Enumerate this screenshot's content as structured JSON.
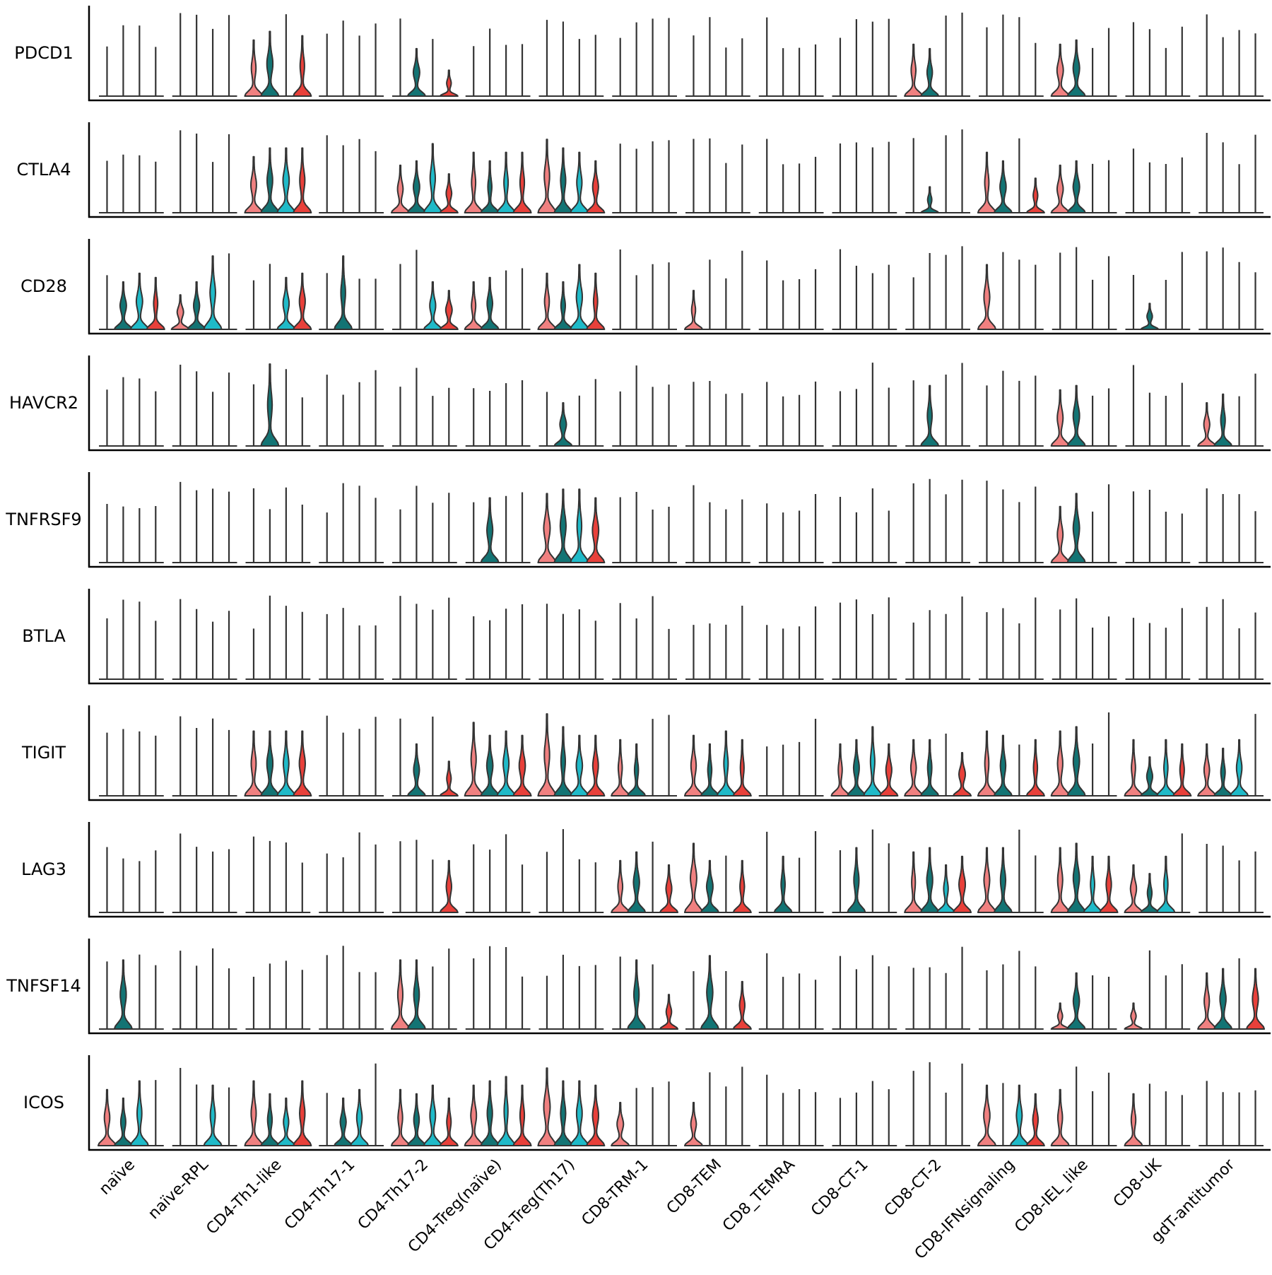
{
  "chart_data": {
    "type": "violin",
    "genes": [
      "PDCD1",
      "CTLA4",
      "CD28",
      "HAVCR2",
      "TNFRSF9",
      "BTLA",
      "TIGIT",
      "LAG3",
      "TNFSF14",
      "ICOS"
    ],
    "clusters": [
      "naïve",
      "naïve-RPL",
      "CD4-Th1-like",
      "CD4-Th17-1",
      "CD4-Th17-2",
      "CD4-Treg(naïve)",
      "CD4-Treg(Th17)",
      "CD8-TRM-1",
      "CD8-TEM",
      "CD8_TEMRA",
      "CD8-CT-1",
      "CD8-CT-2",
      "CD8-IFNsignaling",
      "CD8-IEL_like",
      "CD8-UK",
      "gdT-antitumor"
    ],
    "group_colors": [
      "#f08080",
      "#137474",
      "#1fbac8",
      "#e8403a"
    ],
    "axis_color": "#000000",
    "outline_color": "#333333",
    "ylim": [
      0,
      1
    ],
    "violins": {
      "PDCD1": [
        [
          0,
          0,
          0,
          0
        ],
        [
          0,
          0,
          0,
          0
        ],
        [
          0.65,
          0.75,
          0,
          0.7
        ],
        [
          0,
          0,
          0,
          0
        ],
        [
          0,
          0.55,
          0,
          0.3
        ],
        [
          0,
          0,
          0,
          0
        ],
        [
          0,
          0,
          0,
          0
        ],
        [
          0,
          0,
          0,
          0
        ],
        [
          0,
          0,
          0,
          0
        ],
        [
          0,
          0,
          0,
          0
        ],
        [
          0,
          0,
          0,
          0
        ],
        [
          0.6,
          0.55,
          0,
          0
        ],
        [
          0,
          0,
          0,
          0
        ],
        [
          0.6,
          0.65,
          0,
          0
        ],
        [
          0,
          0,
          0,
          0
        ],
        [
          0,
          0,
          0,
          0
        ]
      ],
      "CTLA4": [
        [
          0,
          0,
          0,
          0
        ],
        [
          0,
          0,
          0,
          0
        ],
        [
          0.65,
          0.75,
          0.75,
          0.75
        ],
        [
          0,
          0,
          0,
          0
        ],
        [
          0.55,
          0.6,
          0.8,
          0.45
        ],
        [
          0.7,
          0.6,
          0.7,
          0.7
        ],
        [
          0.85,
          0.75,
          0.7,
          0.6
        ],
        [
          0,
          0,
          0,
          0
        ],
        [
          0,
          0,
          0,
          0
        ],
        [
          0,
          0,
          0,
          0
        ],
        [
          0,
          0,
          0,
          0
        ],
        [
          0,
          0.3,
          0,
          0
        ],
        [
          0.7,
          0.6,
          0,
          0.4
        ],
        [
          0.55,
          0.6,
          0,
          0
        ],
        [
          0,
          0,
          0,
          0
        ],
        [
          0,
          0,
          0,
          0
        ]
      ],
      "CD28": [
        [
          0,
          0.55,
          0.65,
          0.6
        ],
        [
          0.4,
          0.55,
          0.85,
          0
        ],
        [
          0,
          0,
          0.6,
          0.65
        ],
        [
          0,
          0.85,
          0,
          0
        ],
        [
          0,
          0,
          0.55,
          0.45
        ],
        [
          0.55,
          0.6,
          0,
          0
        ],
        [
          0.65,
          0.55,
          0.75,
          0.65
        ],
        [
          0,
          0,
          0,
          0
        ],
        [
          0.45,
          0,
          0,
          0
        ],
        [
          0,
          0,
          0,
          0
        ],
        [
          0,
          0,
          0,
          0
        ],
        [
          0,
          0,
          0,
          0
        ],
        [
          0.75,
          0,
          0,
          0
        ],
        [
          0,
          0,
          0,
          0
        ],
        [
          0,
          0.3,
          0,
          0
        ],
        [
          0,
          0,
          0,
          0
        ]
      ],
      "HAVCR2": [
        [
          0,
          0,
          0,
          0
        ],
        [
          0,
          0,
          0,
          0
        ],
        [
          0,
          0.95,
          0,
          0
        ],
        [
          0,
          0,
          0,
          0
        ],
        [
          0,
          0,
          0,
          0
        ],
        [
          0,
          0,
          0,
          0
        ],
        [
          0,
          0.5,
          0,
          0
        ],
        [
          0,
          0,
          0,
          0
        ],
        [
          0,
          0,
          0,
          0
        ],
        [
          0,
          0,
          0,
          0
        ],
        [
          0,
          0,
          0,
          0
        ],
        [
          0,
          0.7,
          0,
          0
        ],
        [
          0,
          0,
          0,
          0
        ],
        [
          0.65,
          0.7,
          0,
          0
        ],
        [
          0,
          0,
          0,
          0
        ],
        [
          0.5,
          0.6,
          0,
          0
        ]
      ],
      "TNFRSF9": [
        [
          0,
          0,
          0,
          0
        ],
        [
          0,
          0,
          0,
          0
        ],
        [
          0,
          0,
          0,
          0
        ],
        [
          0,
          0,
          0,
          0
        ],
        [
          0,
          0,
          0,
          0
        ],
        [
          0,
          0.75,
          0,
          0
        ],
        [
          0.8,
          0.85,
          0.85,
          0.75
        ],
        [
          0,
          0,
          0,
          0
        ],
        [
          0,
          0,
          0,
          0
        ],
        [
          0,
          0,
          0,
          0
        ],
        [
          0,
          0,
          0,
          0
        ],
        [
          0,
          0,
          0,
          0
        ],
        [
          0,
          0,
          0,
          0
        ],
        [
          0.65,
          0.8,
          0,
          0
        ],
        [
          0,
          0,
          0,
          0
        ],
        [
          0,
          0,
          0,
          0
        ]
      ],
      "BTLA": [
        [
          0,
          0,
          0,
          0
        ],
        [
          0,
          0,
          0,
          0
        ],
        [
          0,
          0,
          0,
          0
        ],
        [
          0,
          0,
          0,
          0
        ],
        [
          0,
          0,
          0,
          0
        ],
        [
          0,
          0,
          0,
          0
        ],
        [
          0,
          0,
          0,
          0
        ],
        [
          0,
          0,
          0,
          0
        ],
        [
          0,
          0,
          0,
          0
        ],
        [
          0,
          0,
          0,
          0
        ],
        [
          0,
          0,
          0,
          0
        ],
        [
          0,
          0,
          0,
          0
        ],
        [
          0,
          0,
          0,
          0
        ],
        [
          0,
          0,
          0,
          0
        ],
        [
          0,
          0,
          0,
          0
        ],
        [
          0,
          0,
          0,
          0
        ]
      ],
      "TIGIT": [
        [
          0,
          0,
          0,
          0
        ],
        [
          0,
          0,
          0,
          0
        ],
        [
          0.75,
          0.75,
          0.75,
          0.75
        ],
        [
          0,
          0,
          0,
          0
        ],
        [
          0,
          0.6,
          0,
          0.4
        ],
        [
          0.85,
          0.7,
          0.75,
          0.7
        ],
        [
          0.95,
          0.8,
          0.7,
          0.7
        ],
        [
          0.65,
          0.6,
          0,
          0
        ],
        [
          0.7,
          0.6,
          0.75,
          0.65
        ],
        [
          0,
          0,
          0,
          0
        ],
        [
          0.6,
          0.65,
          0.8,
          0.6
        ],
        [
          0.65,
          0.65,
          0,
          0.5
        ],
        [
          0.75,
          0.7,
          0,
          0.65
        ],
        [
          0.75,
          0.8,
          0,
          0
        ],
        [
          0.65,
          0.45,
          0.65,
          0.6
        ],
        [
          0.6,
          0.55,
          0.65,
          0
        ]
      ],
      "LAG3": [
        [
          0,
          0,
          0,
          0
        ],
        [
          0,
          0,
          0,
          0
        ],
        [
          0,
          0,
          0,
          0
        ],
        [
          0,
          0,
          0,
          0
        ],
        [
          0,
          0,
          0,
          0.6
        ],
        [
          0,
          0,
          0,
          0
        ],
        [
          0,
          0,
          0,
          0
        ],
        [
          0.6,
          0.7,
          0,
          0.55
        ],
        [
          0.8,
          0.6,
          0,
          0.6
        ],
        [
          0,
          0.65,
          0,
          0
        ],
        [
          0,
          0.75,
          0,
          0
        ],
        [
          0.7,
          0.75,
          0.55,
          0.65
        ],
        [
          0.75,
          0.75,
          0,
          0
        ],
        [
          0.75,
          0.8,
          0.65,
          0.65
        ],
        [
          0.55,
          0.45,
          0.65,
          0
        ],
        [
          0,
          0,
          0,
          0
        ]
      ],
      "TNFSF14": [
        [
          0,
          0.8,
          0,
          0
        ],
        [
          0,
          0,
          0,
          0
        ],
        [
          0,
          0,
          0,
          0
        ],
        [
          0,
          0,
          0,
          0
        ],
        [
          0.8,
          0.8,
          0,
          0
        ],
        [
          0,
          0,
          0,
          0
        ],
        [
          0,
          0,
          0,
          0
        ],
        [
          0,
          0.8,
          0,
          0.4
        ],
        [
          0,
          0.85,
          0,
          0.55
        ],
        [
          0,
          0,
          0,
          0
        ],
        [
          0,
          0,
          0,
          0
        ],
        [
          0,
          0,
          0,
          0
        ],
        [
          0,
          0,
          0,
          0
        ],
        [
          0.3,
          0.65,
          0,
          0
        ],
        [
          0.3,
          0,
          0,
          0
        ],
        [
          0.65,
          0.7,
          0,
          0.7
        ]
      ],
      "ICOS": [
        [
          0.65,
          0.55,
          0.75,
          0
        ],
        [
          0,
          0,
          0.7,
          0
        ],
        [
          0.75,
          0.6,
          0.55,
          0.75
        ],
        [
          0,
          0.55,
          0.65,
          0
        ],
        [
          0.65,
          0.6,
          0.7,
          0.55
        ],
        [
          0.7,
          0.75,
          0.8,
          0.7
        ],
        [
          0.9,
          0.75,
          0.75,
          0.7
        ],
        [
          0.5,
          0,
          0,
          0
        ],
        [
          0.5,
          0,
          0,
          0
        ],
        [
          0,
          0,
          0,
          0
        ],
        [
          0,
          0,
          0,
          0
        ],
        [
          0,
          0,
          0,
          0
        ],
        [
          0.7,
          0,
          0.7,
          0.6
        ],
        [
          0.65,
          0,
          0,
          0
        ],
        [
          0.6,
          0,
          0,
          0
        ],
        [
          0,
          0,
          0,
          0
        ]
      ]
    }
  }
}
